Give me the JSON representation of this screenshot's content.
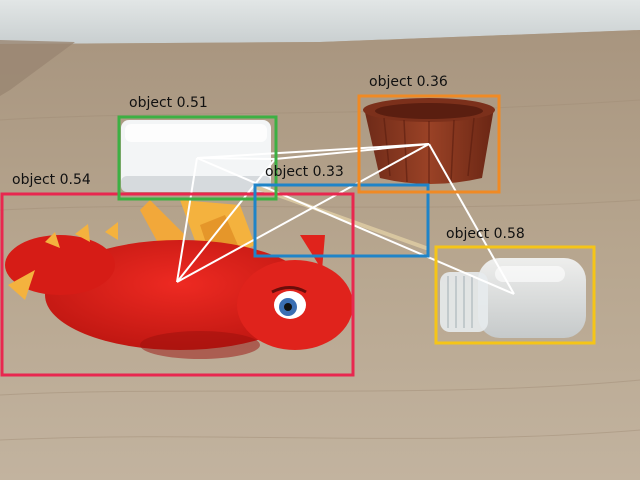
{
  "detections": [
    {
      "label": "object",
      "score": "0.54",
      "color": "#e8274f",
      "subject": "red plush dragon"
    },
    {
      "label": "object",
      "score": "0.51",
      "color": "#3cb043",
      "subject": "white foam block"
    },
    {
      "label": "object",
      "score": "0.33",
      "color": "#1f84c8",
      "subject": "wooden skewer"
    },
    {
      "label": "object",
      "score": "0.36",
      "color": "#f08a24",
      "subject": "brown plastic cup"
    },
    {
      "label": "object",
      "score": "0.58",
      "color": "#f5c518",
      "subject": "clear plastic bottle"
    }
  ],
  "graph": {
    "edge_color": "#ffffff"
  }
}
